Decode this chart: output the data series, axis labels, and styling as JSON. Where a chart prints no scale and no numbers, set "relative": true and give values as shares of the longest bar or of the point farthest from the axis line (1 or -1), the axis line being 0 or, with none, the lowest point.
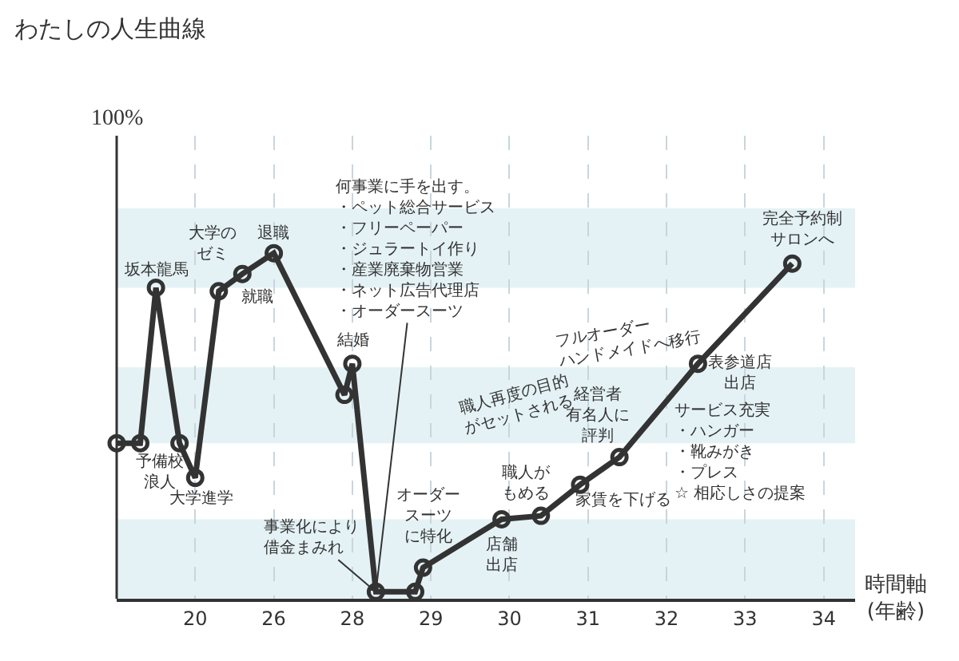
{
  "chart_data": {
    "type": "line",
    "title": "わたしの人生曲線",
    "xlabel": "時間軸(年齢)",
    "relative": true,
    "categories": [
      null,
      null,
      null,
      null,
      null,
      null,
      null,
      null,
      null,
      null,
      "20",
      null,
      null,
      null,
      null,
      null,
      null,
      null,
      null,
      null,
      "26",
      null,
      null,
      null,
      null,
      null,
      null,
      null,
      null,
      null,
      "28",
      null,
      null,
      null,
      null,
      null,
      null,
      null,
      null,
      null,
      "29",
      null,
      null,
      null,
      null,
      null,
      null,
      null,
      null,
      null,
      "30",
      null,
      null,
      null,
      null,
      null,
      null,
      null,
      null,
      null,
      "31",
      null,
      null,
      null,
      null,
      null,
      null,
      null,
      null,
      null,
      "32",
      null,
      null,
      null,
      null,
      null,
      null,
      null,
      null,
      null,
      "33",
      null,
      null,
      null,
      null,
      null,
      null,
      null,
      null,
      null,
      "34",
      null,
      null,
      null,
      null
    ],
    "series": [
      {
        "color": "#333333",
        "values": [
          0.45,
          null,
          null,
          0.45,
          null,
          0.9,
          null,
          null,
          0.45,
          null,
          0.35,
          null,
          null,
          0.89,
          null,
          null,
          0.94,
          null,
          null,
          null,
          1.0,
          null,
          null,
          null,
          null,
          null,
          null,
          null,
          null,
          0.59,
          0.68,
          null,
          null,
          0.02,
          null,
          null,
          null,
          null,
          0.02,
          0.09,
          null,
          null,
          null,
          null,
          null,
          null,
          null,
          null,
          null,
          0.23,
          null,
          null,
          null,
          null,
          0.24,
          null,
          null,
          null,
          null,
          0.33,
          null,
          null,
          null,
          null,
          0.41,
          null,
          null,
          null,
          null,
          null,
          null,
          null,
          null,
          null,
          0.68,
          null,
          null,
          null,
          null,
          null,
          null,
          null,
          null,
          null,
          null,
          null,
          0.97,
          null,
          null,
          null,
          null,
          null,
          null,
          null,
          null
        ]
      }
    ],
    "grid": "x",
    "marker": "circle",
    "line_style": "solid",
    "bands": [
      {
        "axis": "y",
        "from": 0,
        "to": 0.23,
        "color": "#e4f2f6"
      },
      {
        "axis": "y",
        "from": 0.45,
        "to": 0.67,
        "color": "#e4f2f6"
      },
      {
        "axis": "y",
        "from": 0.9,
        "to": 1.13,
        "color": "#e4f2f6"
      }
    ],
    "annotations": [
      "坂本龍馬",
      "予備校浪人",
      "大学進学",
      "大学のゼミ",
      "就職",
      "退職",
      "結婚",
      "事業化により借金まみれ",
      "何事業に手を出す。・ペット総合サービス・フリーペーパー・ジュラートイ作り・産業廃棄物営業・ネット広告代理店・オーダースーツ",
      "オーダースーツに特化",
      "店舗出店",
      "職人がもめる",
      "家賃を下げる",
      "経営者有名人に評判",
      "表参道店出店",
      "完全予約制サロンへ",
      "フルオーダーハンドメイドへ移行",
      "職人再度の目的がセットされる",
      "サービス充実・ハンガー・靴みがき・プレス☆ 相応しさの提案",
      "100%"
    ]
  }
}
